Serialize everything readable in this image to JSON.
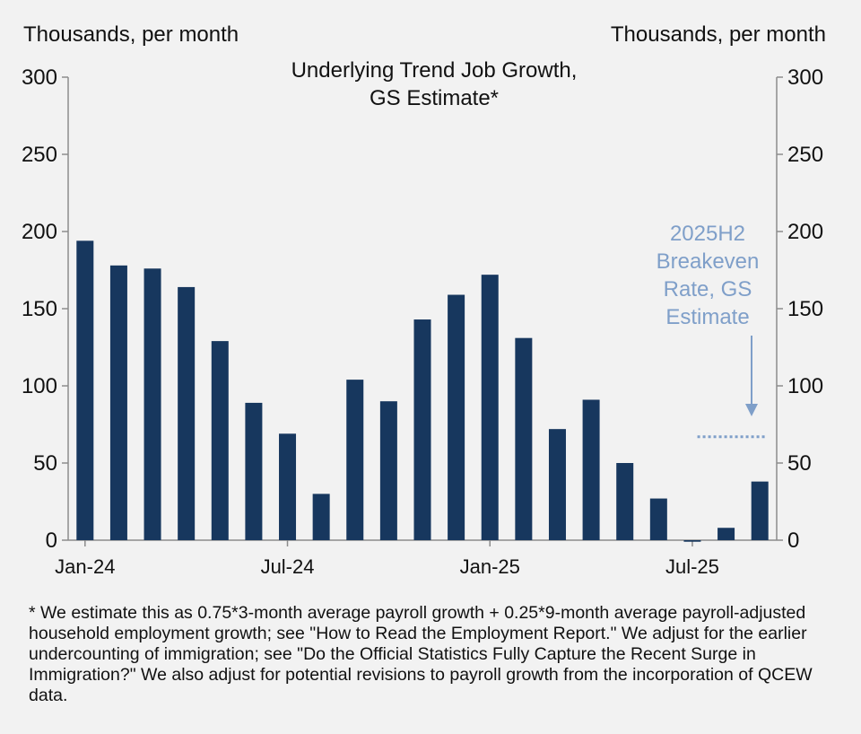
{
  "chart_data": {
    "type": "bar",
    "title": "Underlying Trend Job Growth, GS Estimate*",
    "title_lines": [
      "Underlying Trend Job Growth,",
      "GS Estimate*"
    ],
    "ylabel_left": "Thousands, per month",
    "ylabel_right": "Thousands, per month",
    "ylim": [
      0,
      300
    ],
    "yticks": [
      0,
      50,
      100,
      150,
      200,
      250,
      300
    ],
    "x_tick_labels": [
      {
        "label": "Jan-24",
        "index": 0
      },
      {
        "label": "Jul-24",
        "index": 6
      },
      {
        "label": "Jan-25",
        "index": 12
      },
      {
        "label": "Jul-25",
        "index": 18
      }
    ],
    "categories": [
      "Jan-24",
      "Feb-24",
      "Mar-24",
      "Apr-24",
      "May-24",
      "Jun-24",
      "Jul-24",
      "Aug-24",
      "Sep-24",
      "Oct-24",
      "Nov-24",
      "Dec-24",
      "Jan-25",
      "Feb-25",
      "Mar-25",
      "Apr-25",
      "May-25",
      "Jun-25",
      "Jul-25",
      "Aug-25",
      "Sep-25"
    ],
    "values": [
      194,
      178,
      176,
      164,
      129,
      89,
      69,
      30,
      104,
      90,
      143,
      159,
      172,
      131,
      72,
      91,
      50,
      27,
      -1,
      8,
      38
    ],
    "bar_color": "#17375e",
    "breakeven": {
      "label_lines": [
        "2025H2",
        "Breakeven",
        "Rate, GS",
        "Estimate"
      ],
      "value": 67,
      "start_index": 19,
      "end_index": 20,
      "color": "#7f9fc9"
    },
    "grid": false
  },
  "footnote": "* We estimate this as 0.75*3-month average payroll growth + 0.25*9-month average payroll-adjusted household employment growth; see \"How to Read the Employment Report.\" We adjust for the earlier undercounting of immigration; see \"Do the Official Statistics Fully Capture the Recent Surge in Immigration?\" We also adjust for potential revisions to payroll growth from the incorporation of QCEW data."
}
